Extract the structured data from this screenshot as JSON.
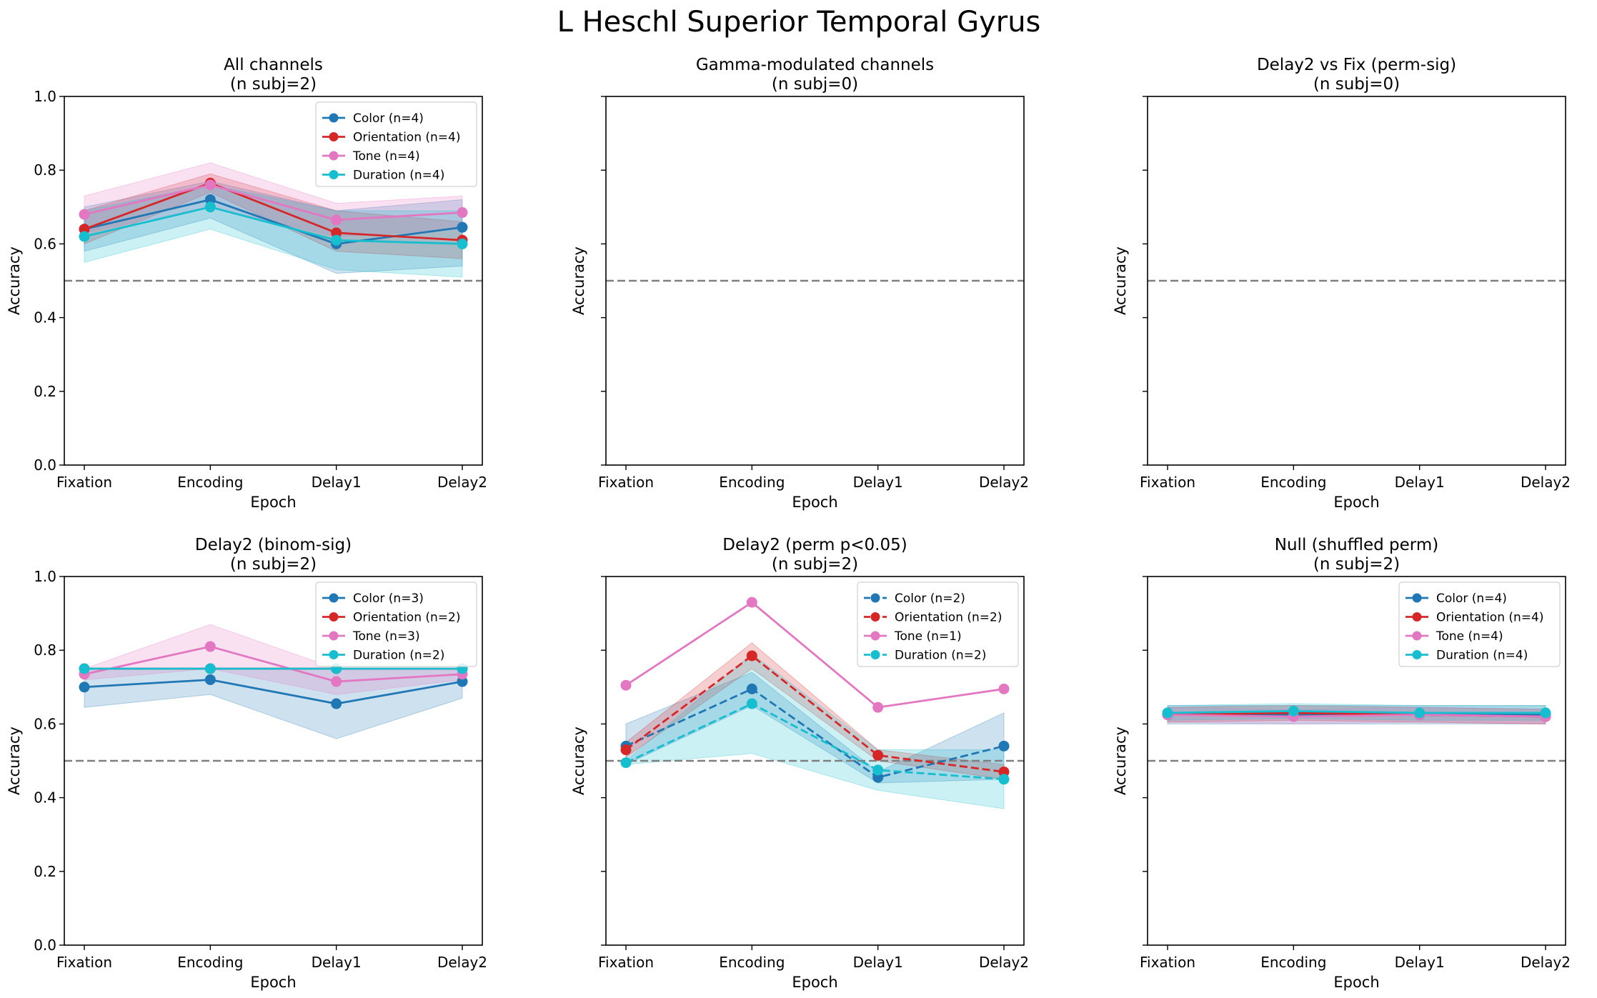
{
  "figure_title": "L Heschl Superior Temporal Gyrus",
  "colors": {
    "Color": "#1f77b4",
    "Orientation": "#d62728",
    "Tone": "#e377c2",
    "Duration": "#17becf",
    "chance_line": "#7f7f7f"
  },
  "chart_data": [
    {
      "type": "line",
      "title_line1": "All channels",
      "title_line2": "(n subj=2)",
      "categories": [
        "Fixation",
        "Encoding",
        "Delay1",
        "Delay2"
      ],
      "xlabel": "Epoch",
      "ylabel": "Accuracy",
      "ylim": [
        0,
        1
      ],
      "yticks": [
        "0.0",
        "0.2",
        "0.4",
        "0.6",
        "0.8",
        "1.0"
      ],
      "show_ytick_labels": true,
      "chance": 0.5,
      "legend_loc": "upper right",
      "series": [
        {
          "name": "Color",
          "label": "Color (n=4)",
          "dashed": false,
          "values": [
            0.64,
            0.72,
            0.6,
            0.645
          ],
          "lower": [
            0.58,
            0.67,
            0.52,
            0.54
          ],
          "upper": [
            0.7,
            0.77,
            0.69,
            0.72
          ]
        },
        {
          "name": "Orientation",
          "label": "Orientation (n=4)",
          "dashed": false,
          "values": [
            0.64,
            0.765,
            0.63,
            0.61
          ],
          "lower": [
            0.6,
            0.74,
            0.58,
            0.56
          ],
          "upper": [
            0.69,
            0.79,
            0.69,
            0.66
          ]
        },
        {
          "name": "Tone",
          "label": "Tone (n=4)",
          "dashed": false,
          "values": [
            0.68,
            0.76,
            0.665,
            0.685
          ],
          "lower": [
            0.63,
            0.7,
            0.62,
            0.64
          ],
          "upper": [
            0.73,
            0.82,
            0.71,
            0.73
          ]
        },
        {
          "name": "Duration",
          "label": "Duration (n=4)",
          "dashed": false,
          "values": [
            0.62,
            0.7,
            0.61,
            0.6
          ],
          "lower": [
            0.55,
            0.64,
            0.53,
            0.51
          ],
          "upper": [
            0.69,
            0.76,
            0.69,
            0.69
          ]
        }
      ]
    },
    {
      "type": "line",
      "title_line1": "Gamma-modulated channels",
      "title_line2": "(n subj=0)",
      "categories": [
        "Fixation",
        "Encoding",
        "Delay1",
        "Delay2"
      ],
      "xlabel": "Epoch",
      "ylabel": "Accuracy",
      "ylim": [
        0,
        1
      ],
      "yticks": [
        "0.0",
        "0.2",
        "0.4",
        "0.6",
        "0.8",
        "1.0"
      ],
      "show_ytick_labels": false,
      "chance": 0.5,
      "series": []
    },
    {
      "type": "line",
      "title_line1": "Delay2 vs Fix (perm-sig)",
      "title_line2": "(n subj=0)",
      "categories": [
        "Fixation",
        "Encoding",
        "Delay1",
        "Delay2"
      ],
      "xlabel": "Epoch",
      "ylabel": "Accuracy",
      "ylim": [
        0,
        1
      ],
      "yticks": [
        "0.0",
        "0.2",
        "0.4",
        "0.6",
        "0.8",
        "1.0"
      ],
      "show_ytick_labels": false,
      "chance": 0.5,
      "series": []
    },
    {
      "type": "line",
      "title_line1": "Delay2 (binom-sig)",
      "title_line2": "(n subj=2)",
      "categories": [
        "Fixation",
        "Encoding",
        "Delay1",
        "Delay2"
      ],
      "xlabel": "Epoch",
      "ylabel": "Accuracy",
      "ylim": [
        0,
        1
      ],
      "yticks": [
        "0.0",
        "0.2",
        "0.4",
        "0.6",
        "0.8",
        "1.0"
      ],
      "show_ytick_labels": true,
      "chance": 0.5,
      "legend_loc": "upper right",
      "series": [
        {
          "name": "Color",
          "label": "Color (n=3)",
          "dashed": false,
          "values": [
            0.7,
            0.72,
            0.655,
            0.715
          ],
          "lower": [
            0.645,
            0.68,
            0.56,
            0.67
          ],
          "upper": [
            0.75,
            0.75,
            0.75,
            0.75
          ]
        },
        {
          "name": "Orientation",
          "label": "Orientation (n=2)",
          "dashed": false,
          "values": [
            0.75,
            0.75,
            0.75,
            0.75
          ],
          "lower": [
            0.75,
            0.75,
            0.75,
            0.75
          ],
          "upper": [
            0.75,
            0.75,
            0.75,
            0.75
          ]
        },
        {
          "name": "Tone",
          "label": "Tone (n=3)",
          "dashed": false,
          "values": [
            0.735,
            0.81,
            0.715,
            0.735
          ],
          "lower": [
            0.72,
            0.75,
            0.68,
            0.72
          ],
          "upper": [
            0.75,
            0.87,
            0.75,
            0.75
          ]
        },
        {
          "name": "Duration",
          "label": "Duration (n=2)",
          "dashed": false,
          "values": [
            0.75,
            0.75,
            0.75,
            0.75
          ],
          "lower": [
            0.75,
            0.75,
            0.75,
            0.75
          ],
          "upper": [
            0.75,
            0.75,
            0.75,
            0.75
          ]
        }
      ]
    },
    {
      "type": "line",
      "title_line1": "Delay2 (perm p<0.05)",
      "title_line2": "(n subj=2)",
      "categories": [
        "Fixation",
        "Encoding",
        "Delay1",
        "Delay2"
      ],
      "xlabel": "Epoch",
      "ylabel": "Accuracy",
      "ylim": [
        0,
        1
      ],
      "yticks": [
        "0.0",
        "0.2",
        "0.4",
        "0.6",
        "0.8",
        "1.0"
      ],
      "show_ytick_labels": false,
      "chance": 0.5,
      "legend_loc": "upper right",
      "series": [
        {
          "name": "Color",
          "label": "Color (n=2)",
          "dashed": true,
          "values": [
            0.54,
            0.695,
            0.455,
            0.54
          ],
          "lower": [
            0.49,
            0.65,
            0.44,
            0.45
          ],
          "upper": [
            0.6,
            0.74,
            0.47,
            0.63
          ]
        },
        {
          "name": "Orientation",
          "label": "Orientation (n=2)",
          "dashed": true,
          "values": [
            0.53,
            0.785,
            0.515,
            0.47
          ],
          "lower": [
            0.51,
            0.75,
            0.5,
            0.45
          ],
          "upper": [
            0.55,
            0.82,
            0.53,
            0.49
          ]
        },
        {
          "name": "Tone",
          "label": "Tone (n=1)",
          "dashed": false,
          "values": [
            0.705,
            0.93,
            0.645,
            0.695
          ],
          "lower": null,
          "upper": null
        },
        {
          "name": "Duration",
          "label": "Duration (n=2)",
          "dashed": true,
          "values": [
            0.495,
            0.655,
            0.475,
            0.45
          ],
          "lower": [
            0.49,
            0.52,
            0.42,
            0.37
          ],
          "upper": [
            0.5,
            0.79,
            0.53,
            0.53
          ]
        }
      ]
    },
    {
      "type": "line",
      "title_line1": "Null (shuffled perm)",
      "title_line2": "(n subj=2)",
      "categories": [
        "Fixation",
        "Encoding",
        "Delay1",
        "Delay2"
      ],
      "xlabel": "Epoch",
      "ylabel": "Accuracy",
      "ylim": [
        0,
        1
      ],
      "yticks": [
        "0.0",
        "0.2",
        "0.4",
        "0.6",
        "0.8",
        "1.0"
      ],
      "show_ytick_labels": false,
      "chance": 0.5,
      "legend_loc": "upper right",
      "series": [
        {
          "name": "Color",
          "label": "Color (n=4)",
          "dashed": false,
          "values": [
            0.625,
            0.625,
            0.625,
            0.625
          ],
          "lower": [
            0.6,
            0.6,
            0.6,
            0.6
          ],
          "upper": [
            0.65,
            0.65,
            0.65,
            0.65
          ]
        },
        {
          "name": "Orientation",
          "label": "Orientation (n=4)",
          "dashed": false,
          "values": [
            0.625,
            0.63,
            0.625,
            0.62
          ],
          "lower": [
            0.605,
            0.61,
            0.605,
            0.6
          ],
          "upper": [
            0.645,
            0.65,
            0.645,
            0.64
          ]
        },
        {
          "name": "Tone",
          "label": "Tone (n=4)",
          "dashed": false,
          "values": [
            0.625,
            0.62,
            0.625,
            0.62
          ],
          "lower": [
            0.605,
            0.6,
            0.605,
            0.6
          ],
          "upper": [
            0.645,
            0.64,
            0.645,
            0.64
          ]
        },
        {
          "name": "Duration",
          "label": "Duration (n=4)",
          "dashed": false,
          "values": [
            0.63,
            0.635,
            0.63,
            0.63
          ],
          "lower": [
            0.61,
            0.615,
            0.61,
            0.61
          ],
          "upper": [
            0.65,
            0.655,
            0.65,
            0.65
          ]
        }
      ]
    }
  ]
}
